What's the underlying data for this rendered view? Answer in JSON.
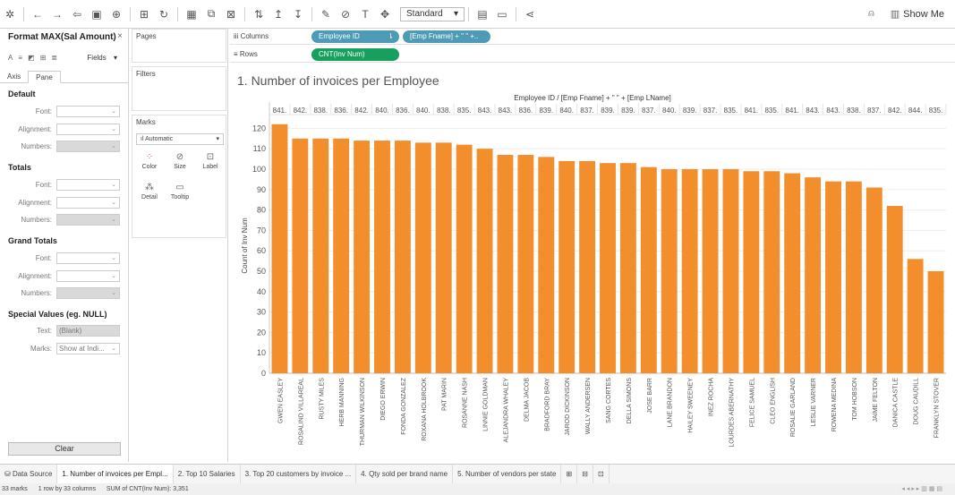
{
  "toolbar": {
    "fit_select": "Standard",
    "show_me": "Show Me"
  },
  "format_pane": {
    "title": "Format MAX(Sal Amount)",
    "close": "×",
    "fields_label": "Fields",
    "tabs": [
      "Axis",
      "Pane"
    ],
    "default_heading": "Default",
    "totals_heading": "Totals",
    "grand_totals_heading": "Grand Totals",
    "special_heading": "Special Values (eg. NULL)",
    "font_label": "Font:",
    "alignment_label": "Alignment:",
    "numbers_label": "Numbers:",
    "text_label": "Text:",
    "text_value": "(Blank)",
    "marks_label": "Marks:",
    "marks_value": "Show at Indi...",
    "clear_label": "Clear"
  },
  "cards": {
    "pages": "Pages",
    "filters": "Filters",
    "marks": "Marks",
    "mark_type": "Automatic",
    "color": "Color",
    "size": "Size",
    "label": "Label",
    "detail": "Detail",
    "tooltip": "Tooltip"
  },
  "shelves": {
    "columns_label": "Columns",
    "rows_label": "Rows",
    "col_pill_1": "Employee ID",
    "col_pill_2": "[Emp Fname] + \" \" +..",
    "row_pill_1": "CNT(Inv Num)"
  },
  "viz": {
    "title": "1. Number of invoices per Employee"
  },
  "chart_data": {
    "type": "bar",
    "column_header": "Employee ID  /  [Emp Fname] + \" \" + [Emp LName]",
    "ylabel": "Count of Inv Num",
    "ylim": [
      0,
      125
    ],
    "yticks": [
      0,
      10,
      20,
      30,
      40,
      50,
      60,
      70,
      80,
      90,
      100,
      110,
      120
    ],
    "color": "#f28e2b",
    "ids": [
      "841.",
      "842.",
      "838.",
      "836.",
      "842.",
      "840.",
      "836.",
      "840.",
      "838.",
      "835.",
      "843.",
      "843.",
      "836.",
      "839.",
      "840.",
      "837.",
      "839.",
      "839.",
      "837.",
      "840.",
      "839.",
      "837.",
      "835.",
      "841.",
      "835.",
      "841.",
      "843.",
      "843.",
      "838.",
      "837.",
      "842.",
      "844.",
      "835."
    ],
    "categories": [
      "GWEN EASLEY",
      "ROSALIND VILLAREAL",
      "RUSTY MILES",
      "HERB MANNING",
      "THURMAN WILKINSON",
      "DIEGO ERWIN",
      "FONDA GONZALEZ",
      "ROXANA HOLBROOK",
      "PAT MARIN",
      "ROSANNE NASH",
      "LINNIE GOLDMAN",
      "ALEJANDRA WHALEY",
      "DELMA JACOB",
      "BRADFORD BRAY",
      "JAROD DICKINSON",
      "WALLY ANDERSEN",
      "SANG CORTES",
      "DELLA SIMONS",
      "JOSE BARR",
      "LANE BRANDON",
      "HAILEY SWEENEY",
      "INEZ ROCHA",
      "LOURDES ABERNATHY",
      "FELICE SAMUEL",
      "CLEO ENGLISH",
      "ROSALIE GARLAND",
      "LESLIE VARNER",
      "ROWENA MEDINA",
      "TOM HOBSON",
      "JAIME FELTON",
      "DANICA CASTLE",
      "DOUG CAUDILL",
      "FRANKLYN STOVER"
    ],
    "values": [
      122,
      115,
      115,
      115,
      114,
      114,
      114,
      113,
      113,
      112,
      110,
      107,
      107,
      106,
      104,
      104,
      103,
      103,
      101,
      100,
      100,
      100,
      100,
      99,
      99,
      98,
      96,
      94,
      94,
      91,
      82,
      56,
      50
    ]
  },
  "sheet_tabs": {
    "data_source": "Data Source",
    "tabs": [
      "1. Number of invoices per Empl...",
      "2. Top 10 Salaries",
      "3. Top 20 customers by invoice ...",
      "4. Qty sold per brand name",
      "5. Number of vendors per state"
    ]
  },
  "status": {
    "marks": "33 marks",
    "rows": "1 row by 33 columns",
    "sum": "SUM of CNT(Inv Num): 3,351"
  }
}
